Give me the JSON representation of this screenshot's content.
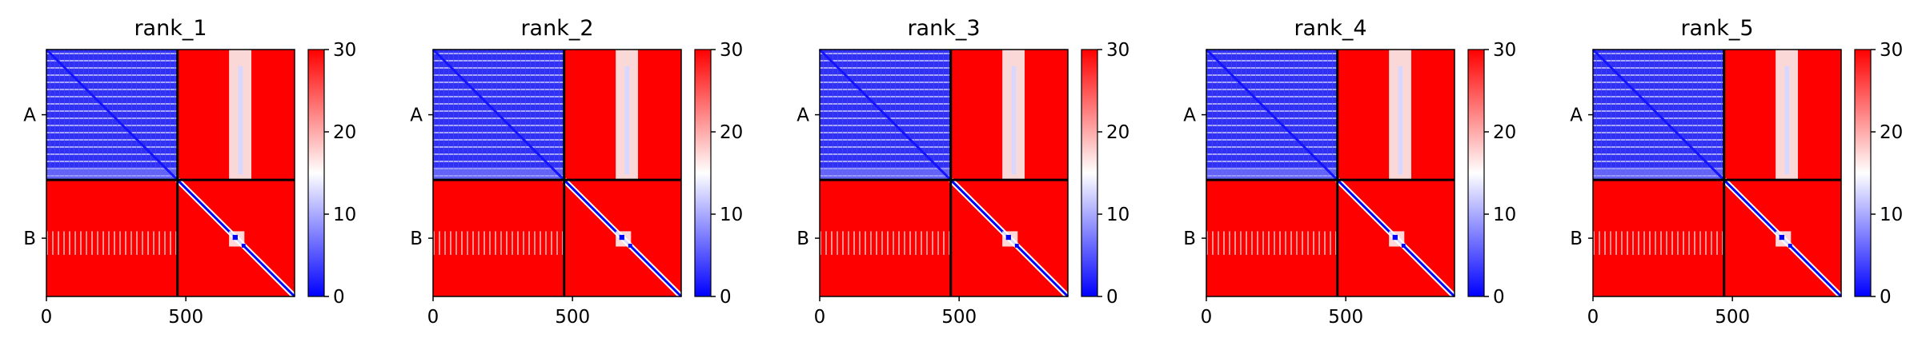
{
  "chart_data": {
    "type": "heatmap",
    "colormap": {
      "low": "#0000ff",
      "mid": "#ffffff",
      "high": "#ff0000"
    },
    "vmin": 0,
    "vmax": 30,
    "colorbar_ticks": [
      0,
      10,
      20,
      30
    ],
    "x_ticks": [
      0,
      500
    ],
    "x_range": [
      0,
      890
    ],
    "chains": [
      {
        "label": "A",
        "start": 0,
        "end": 470
      },
      {
        "label": "B",
        "start": 470,
        "end": 890
      }
    ],
    "panels": [
      {
        "title": "rank_1"
      },
      {
        "title": "rank_2"
      },
      {
        "title": "rank_3"
      },
      {
        "title": "rank_4"
      },
      {
        "title": "rank_5"
      }
    ]
  }
}
